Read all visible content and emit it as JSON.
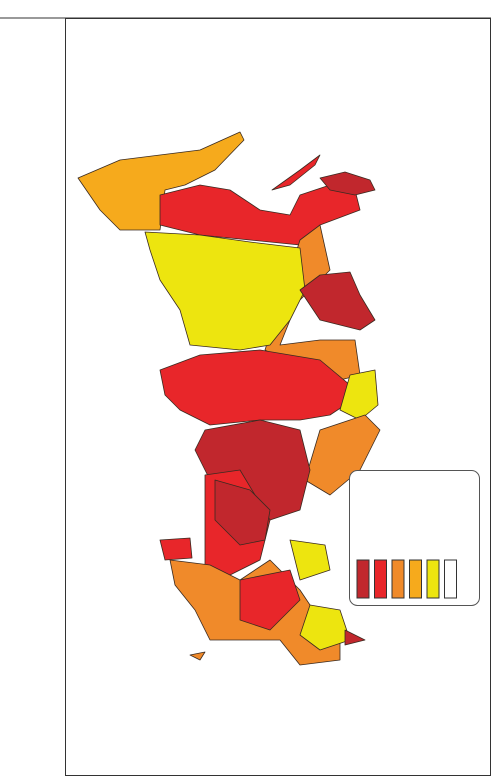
{
  "legend": {
    "swatches": [
      "#c1272d",
      "#e8262a",
      "#f08a2a",
      "#f6aa1c",
      "#ede50f",
      "#ffffff"
    ]
  }
}
